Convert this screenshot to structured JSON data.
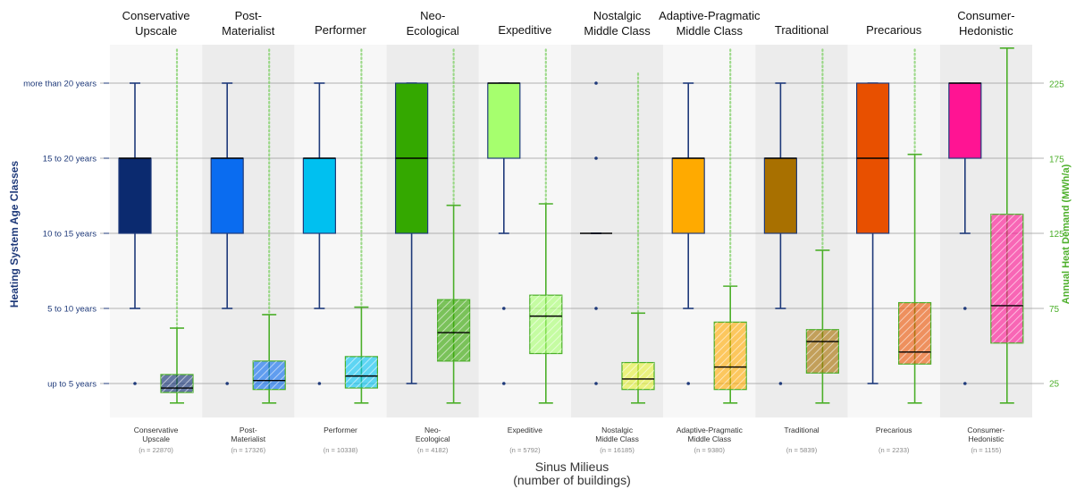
{
  "chart_data": {
    "type": "boxplot",
    "xlabel": "Sinus Milieus",
    "xlabel_sub": "(number of buildings)",
    "ylabel_left": "Heating System Age Classes",
    "ylabel_right": "Annual Heat Demand (MWh/a)",
    "left_axis_ticks": [
      "up to 5 years",
      "5 to 10 years",
      "10 to 15 years",
      "15 to 20 years",
      "more than 20 years"
    ],
    "right_axis_ticks": [
      25,
      75,
      125,
      175,
      225
    ],
    "right_ylim": [
      12,
      249
    ],
    "colors": {
      "left_axis": "#1f3a7a",
      "right_axis": "#4caf2a",
      "outline": "#1f3a7a",
      "median": "#000000"
    },
    "categories": [
      {
        "top_label": "Conservative\nUpscale",
        "bottom_label": "Conservative\nUpscale",
        "n_label": "(n = 22870)",
        "color": "#0b2a6f",
        "age": {
          "whisker_low": 2,
          "q1": 3,
          "median": 4,
          "q3": 4,
          "whisker_high": 5,
          "outliers": [
            1
          ]
        },
        "heat": {
          "whisker_low": 12,
          "q1": 19,
          "median": 22,
          "q3": 31,
          "whisker_high": 62,
          "flier_max": 248
        }
      },
      {
        "top_label": "Post-\nMaterialist",
        "bottom_label": "Post-\nMaterialist",
        "n_label": "(n = 17326)",
        "color": "#0a6cf0",
        "age": {
          "whisker_low": 2,
          "q1": 3,
          "median": 4,
          "q3": 4,
          "whisker_high": 5,
          "outliers": [
            1
          ]
        },
        "heat": {
          "whisker_low": 12,
          "q1": 21,
          "median": 27,
          "q3": 40,
          "whisker_high": 71,
          "flier_max": 248
        }
      },
      {
        "top_label": "Performer",
        "bottom_label": "Performer",
        "n_label": "(n = 10338)",
        "color": "#00c0f0",
        "age": {
          "whisker_low": 2,
          "q1": 3,
          "median": 4,
          "q3": 4,
          "whisker_high": 5,
          "outliers": [
            1
          ]
        },
        "heat": {
          "whisker_low": 12,
          "q1": 22,
          "median": 30,
          "q3": 43,
          "whisker_high": 76,
          "flier_max": 248
        }
      },
      {
        "top_label": "Neo-\nEcological",
        "bottom_label": "Neo-\nEcological",
        "n_label": "(n = 4182)",
        "color": "#34a800",
        "age": {
          "whisker_low": 1,
          "q1": 3,
          "median": 4,
          "q3": 5,
          "whisker_high": 5,
          "outliers": []
        },
        "heat": {
          "whisker_low": 12,
          "q1": 40,
          "median": 59,
          "q3": 81,
          "whisker_high": 144,
          "flier_max": 248
        }
      },
      {
        "top_label": "Expeditive",
        "bottom_label": "Expeditive",
        "n_label": "(n = 5792)",
        "color": "#a6ff6e",
        "age": {
          "whisker_low": 3,
          "q1": 4,
          "median": 5,
          "q3": 5,
          "whisker_high": 5,
          "outliers": [
            1,
            2
          ]
        },
        "heat": {
          "whisker_low": 12,
          "q1": 45,
          "median": 70,
          "q3": 84,
          "whisker_high": 145,
          "flier_max": 248
        }
      },
      {
        "top_label": "Nostalgic\nMiddle Class",
        "bottom_label": "Nostalgic\nMiddle Class",
        "n_label": "(n = 16185)",
        "color": "#e8f53a",
        "age": {
          "whisker_low": 3,
          "q1": 3,
          "median": 3,
          "q3": 3,
          "whisker_high": 3,
          "outliers": [
            1,
            2,
            4,
            5
          ]
        },
        "heat": {
          "whisker_low": 12,
          "q1": 21,
          "median": 28,
          "q3": 39,
          "whisker_high": 72,
          "flier_max": 232
        }
      },
      {
        "top_label": "Adaptive-Pragmatic\nMiddle Class",
        "bottom_label": "Adaptive-Pragmatic\nMiddle Class",
        "n_label": "(n = 9380)",
        "color": "#ffaa00",
        "age": {
          "whisker_low": 2,
          "q1": 3,
          "median": 4,
          "q3": 4,
          "whisker_high": 5,
          "outliers": [
            1
          ]
        },
        "heat": {
          "whisker_low": 12,
          "q1": 21,
          "median": 36,
          "q3": 66,
          "whisker_high": 90,
          "flier_max": 248
        }
      },
      {
        "top_label": "Traditional",
        "bottom_label": "Traditional",
        "n_label": "(n = 5839)",
        "color": "#a87000",
        "age": {
          "whisker_low": 2,
          "q1": 3,
          "median": 4,
          "q3": 4,
          "whisker_high": 5,
          "outliers": [
            1
          ]
        },
        "heat": {
          "whisker_low": 12,
          "q1": 32,
          "median": 53,
          "q3": 61,
          "whisker_high": 114,
          "flier_max": 248
        }
      },
      {
        "top_label": "Precarious",
        "bottom_label": "Precarious",
        "n_label": "(n = 2233)",
        "color": "#e85000",
        "age": {
          "whisker_low": 1,
          "q1": 3,
          "median": 4,
          "q3": 5,
          "whisker_high": 5,
          "outliers": []
        },
        "heat": {
          "whisker_low": 12,
          "q1": 38,
          "median": 46,
          "q3": 79,
          "whisker_high": 178,
          "flier_max": 248
        }
      },
      {
        "top_label": "Consumer-\nHedonistic",
        "bottom_label": "Consumer-\nHedonistic",
        "n_label": "(n = 1155)",
        "color": "#ff1493",
        "age": {
          "whisker_low": 3,
          "q1": 4,
          "median": 5,
          "q3": 5,
          "whisker_high": 5,
          "outliers": [
            1,
            2
          ]
        },
        "heat": {
          "whisker_low": 12,
          "q1": 52,
          "median": 77,
          "q3": 138,
          "whisker_high": 249,
          "flier_max": 249
        }
      }
    ]
  }
}
